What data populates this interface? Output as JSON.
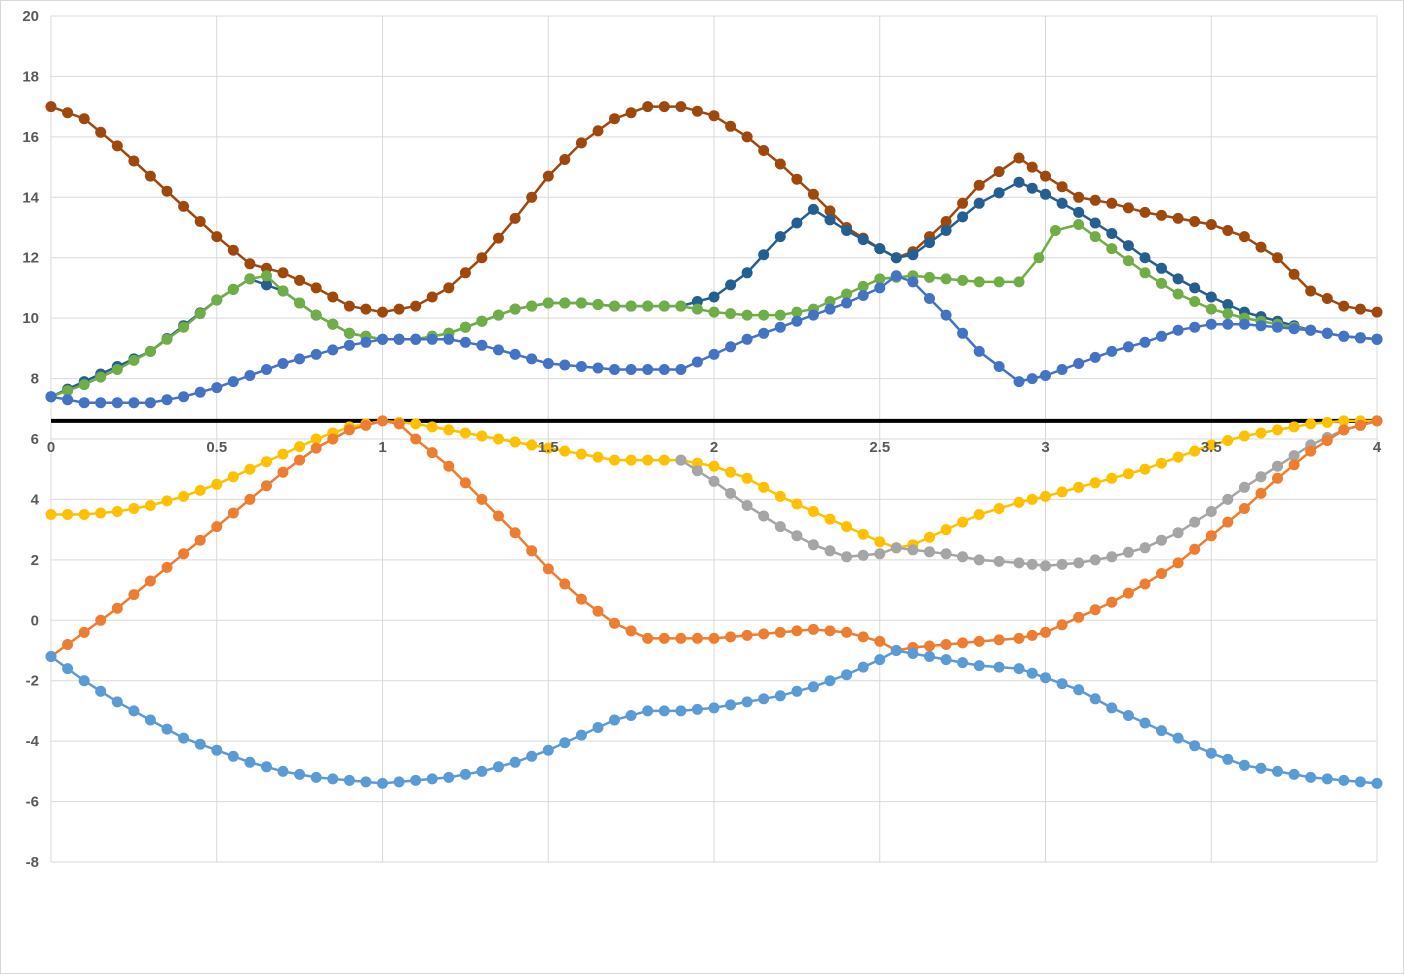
{
  "chart_data": {
    "type": "line",
    "title": "",
    "xlabel": "",
    "ylabel": "",
    "xlim": [
      0,
      4
    ],
    "ylim": [
      -8,
      20
    ],
    "x_ticks": [
      0,
      0.5,
      1,
      1.5,
      2,
      2.5,
      3,
      3.5,
      4
    ],
    "y_ticks": [
      -8,
      -6,
      -4,
      -2,
      0,
      2,
      4,
      6,
      8,
      10,
      12,
      14,
      16,
      18,
      20
    ],
    "grid": true,
    "x_axis_at_y": 6.6,
    "legend": "none",
    "series": [
      {
        "color": "#9E480E",
        "points": [
          [
            0,
            17.0
          ],
          [
            0.1,
            16.6
          ],
          [
            0.2,
            15.7
          ],
          [
            0.3,
            14.7
          ],
          [
            0.4,
            13.7
          ],
          [
            0.5,
            12.7
          ],
          [
            0.6,
            11.8
          ],
          [
            0.7,
            11.5
          ],
          [
            0.8,
            11.0
          ],
          [
            0.9,
            10.4
          ],
          [
            1.0,
            10.2
          ],
          [
            1.1,
            10.4
          ],
          [
            1.2,
            11.0
          ],
          [
            1.3,
            12.0
          ],
          [
            1.4,
            13.3
          ],
          [
            1.5,
            14.7
          ],
          [
            1.6,
            15.8
          ],
          [
            1.7,
            16.6
          ],
          [
            1.8,
            17.0
          ],
          [
            1.9,
            17.0
          ],
          [
            2.0,
            16.7
          ],
          [
            2.1,
            16.0
          ],
          [
            2.2,
            15.1
          ],
          [
            2.3,
            14.1
          ],
          [
            2.4,
            13.0
          ],
          [
            2.5,
            12.3
          ],
          [
            2.55,
            12.0
          ],
          [
            2.6,
            12.2
          ],
          [
            2.7,
            13.2
          ],
          [
            2.8,
            14.4
          ],
          [
            2.92,
            15.3
          ],
          [
            3.0,
            14.7
          ],
          [
            3.1,
            14.0
          ],
          [
            3.2,
            13.8
          ],
          [
            3.3,
            13.5
          ],
          [
            3.4,
            13.3
          ],
          [
            3.5,
            13.1
          ],
          [
            3.6,
            12.7
          ],
          [
            3.7,
            12.0
          ],
          [
            3.8,
            10.9
          ],
          [
            3.9,
            10.4
          ],
          [
            4.0,
            10.2
          ]
        ]
      },
      {
        "color": "#255E91",
        "points": [
          [
            0,
            7.4
          ],
          [
            0.3,
            8.9
          ],
          [
            0.5,
            10.6
          ],
          [
            0.6,
            11.3
          ],
          [
            0.7,
            10.9
          ],
          [
            0.8,
            10.1
          ],
          [
            0.9,
            9.5
          ],
          [
            1.0,
            9.3
          ],
          [
            1.1,
            9.3
          ],
          [
            1.2,
            9.5
          ],
          [
            1.3,
            9.9
          ],
          [
            1.4,
            10.3
          ],
          [
            1.5,
            10.5
          ],
          [
            1.6,
            10.5
          ],
          [
            1.7,
            10.4
          ],
          [
            1.8,
            10.4
          ],
          [
            1.9,
            10.4
          ],
          [
            2.0,
            10.7
          ],
          [
            2.1,
            11.5
          ],
          [
            2.2,
            12.7
          ],
          [
            2.3,
            13.6
          ],
          [
            2.4,
            12.9
          ],
          [
            2.5,
            12.3
          ],
          [
            2.55,
            12.0
          ],
          [
            2.6,
            12.1
          ],
          [
            2.7,
            12.9
          ],
          [
            2.8,
            13.8
          ],
          [
            2.92,
            14.5
          ],
          [
            3.0,
            14.1
          ],
          [
            3.1,
            13.5
          ],
          [
            3.2,
            12.8
          ],
          [
            3.3,
            12.0
          ],
          [
            3.4,
            11.3
          ],
          [
            3.5,
            10.7
          ],
          [
            3.6,
            10.2
          ],
          [
            3.7,
            9.9
          ],
          [
            3.8,
            9.6
          ],
          [
            3.9,
            9.4
          ],
          [
            4.0,
            9.3
          ]
        ]
      },
      {
        "color": "#70AD47",
        "points": [
          [
            0,
            7.4
          ],
          [
            0.1,
            7.8
          ],
          [
            0.2,
            8.3
          ],
          [
            0.3,
            8.9
          ],
          [
            0.4,
            9.7
          ],
          [
            0.5,
            10.6
          ],
          [
            0.6,
            11.3
          ],
          [
            0.65,
            11.4
          ],
          [
            0.7,
            10.9
          ],
          [
            0.8,
            10.1
          ],
          [
            0.9,
            9.5
          ],
          [
            1.0,
            9.3
          ],
          [
            1.1,
            9.3
          ],
          [
            1.2,
            9.5
          ],
          [
            1.3,
            9.9
          ],
          [
            1.4,
            10.3
          ],
          [
            1.5,
            10.5
          ],
          [
            1.6,
            10.5
          ],
          [
            1.7,
            10.4
          ],
          [
            1.8,
            10.4
          ],
          [
            1.9,
            10.4
          ],
          [
            2.0,
            10.2
          ],
          [
            2.1,
            10.1
          ],
          [
            2.2,
            10.1
          ],
          [
            2.3,
            10.3
          ],
          [
            2.4,
            10.8
          ],
          [
            2.5,
            11.3
          ],
          [
            2.6,
            11.4
          ],
          [
            2.7,
            11.3
          ],
          [
            2.8,
            11.2
          ],
          [
            2.92,
            11.2
          ],
          [
            2.98,
            12.0
          ],
          [
            3.03,
            12.9
          ],
          [
            3.1,
            13.1
          ],
          [
            3.2,
            12.3
          ],
          [
            3.3,
            11.5
          ],
          [
            3.4,
            10.8
          ],
          [
            3.5,
            10.3
          ],
          [
            3.6,
            10.0
          ],
          [
            3.7,
            9.8
          ],
          [
            3.8,
            9.6
          ],
          [
            3.9,
            9.4
          ],
          [
            4.0,
            9.3
          ]
        ]
      },
      {
        "color": "#4472C4",
        "points": [
          [
            0,
            7.4
          ],
          [
            0.1,
            7.2
          ],
          [
            0.2,
            7.2
          ],
          [
            0.3,
            7.2
          ],
          [
            0.4,
            7.4
          ],
          [
            0.5,
            7.7
          ],
          [
            0.6,
            8.1
          ],
          [
            0.7,
            8.5
          ],
          [
            0.8,
            8.8
          ],
          [
            0.9,
            9.1
          ],
          [
            1.0,
            9.3
          ],
          [
            1.1,
            9.3
          ],
          [
            1.2,
            9.3
          ],
          [
            1.3,
            9.1
          ],
          [
            1.4,
            8.8
          ],
          [
            1.5,
            8.5
          ],
          [
            1.6,
            8.4
          ],
          [
            1.7,
            8.3
          ],
          [
            1.8,
            8.3
          ],
          [
            1.9,
            8.3
          ],
          [
            2.0,
            8.8
          ],
          [
            2.1,
            9.3
          ],
          [
            2.2,
            9.7
          ],
          [
            2.3,
            10.1
          ],
          [
            2.4,
            10.5
          ],
          [
            2.5,
            11.0
          ],
          [
            2.55,
            11.4
          ],
          [
            2.6,
            11.2
          ],
          [
            2.7,
            10.1
          ],
          [
            2.8,
            8.9
          ],
          [
            2.92,
            7.9
          ],
          [
            3.0,
            8.1
          ],
          [
            3.1,
            8.5
          ],
          [
            3.2,
            8.9
          ],
          [
            3.3,
            9.2
          ],
          [
            3.4,
            9.6
          ],
          [
            3.5,
            9.8
          ],
          [
            3.6,
            9.8
          ],
          [
            3.7,
            9.7
          ],
          [
            3.8,
            9.6
          ],
          [
            3.9,
            9.4
          ],
          [
            4.0,
            9.3
          ]
        ]
      },
      {
        "color": "#FFC000",
        "points": [
          [
            0,
            3.5
          ],
          [
            0.1,
            3.5
          ],
          [
            0.2,
            3.6
          ],
          [
            0.3,
            3.8
          ],
          [
            0.4,
            4.1
          ],
          [
            0.5,
            4.5
          ],
          [
            0.6,
            5.0
          ],
          [
            0.7,
            5.5
          ],
          [
            0.8,
            6.0
          ],
          [
            0.9,
            6.4
          ],
          [
            1.0,
            6.6
          ],
          [
            1.1,
            6.5
          ],
          [
            1.2,
            6.3
          ],
          [
            1.3,
            6.1
          ],
          [
            1.4,
            5.9
          ],
          [
            1.5,
            5.7
          ],
          [
            1.6,
            5.5
          ],
          [
            1.7,
            5.3
          ],
          [
            1.8,
            5.3
          ],
          [
            1.9,
            5.3
          ],
          [
            2.0,
            5.1
          ],
          [
            2.1,
            4.7
          ],
          [
            2.2,
            4.1
          ],
          [
            2.3,
            3.6
          ],
          [
            2.4,
            3.1
          ],
          [
            2.5,
            2.6
          ],
          [
            2.55,
            2.4
          ],
          [
            2.6,
            2.5
          ],
          [
            2.7,
            3.0
          ],
          [
            2.8,
            3.5
          ],
          [
            2.92,
            3.9
          ],
          [
            3.0,
            4.1
          ],
          [
            3.1,
            4.4
          ],
          [
            3.2,
            4.7
          ],
          [
            3.3,
            5.0
          ],
          [
            3.4,
            5.4
          ],
          [
            3.5,
            5.8
          ],
          [
            3.6,
            6.1
          ],
          [
            3.7,
            6.3
          ],
          [
            3.8,
            6.5
          ],
          [
            3.9,
            6.6
          ],
          [
            4.0,
            6.6
          ]
        ]
      },
      {
        "color": "#A5A5A5",
        "points": [
          [
            1.9,
            5.3
          ],
          [
            2.0,
            4.6
          ],
          [
            2.1,
            3.8
          ],
          [
            2.2,
            3.1
          ],
          [
            2.3,
            2.5
          ],
          [
            2.4,
            2.1
          ],
          [
            2.5,
            2.2
          ],
          [
            2.55,
            2.4
          ],
          [
            2.7,
            2.2
          ],
          [
            2.8,
            2.0
          ],
          [
            2.92,
            1.9
          ],
          [
            3.0,
            1.8
          ],
          [
            3.1,
            1.9
          ],
          [
            3.2,
            2.1
          ],
          [
            3.3,
            2.4
          ],
          [
            3.4,
            2.9
          ],
          [
            3.5,
            3.6
          ],
          [
            3.6,
            4.4
          ],
          [
            3.7,
            5.1
          ],
          [
            3.8,
            5.8
          ],
          [
            3.9,
            6.3
          ],
          [
            4.0,
            6.6
          ]
        ]
      },
      {
        "color": "#ED7D31",
        "points": [
          [
            0,
            -1.2
          ],
          [
            0.1,
            -0.4
          ],
          [
            0.2,
            0.4
          ],
          [
            0.3,
            1.3
          ],
          [
            0.4,
            2.2
          ],
          [
            0.5,
            3.1
          ],
          [
            0.6,
            4.0
          ],
          [
            0.7,
            4.9
          ],
          [
            0.8,
            5.7
          ],
          [
            0.9,
            6.3
          ],
          [
            1.0,
            6.6
          ],
          [
            1.05,
            6.5
          ],
          [
            1.1,
            6.0
          ],
          [
            1.2,
            5.1
          ],
          [
            1.3,
            4.0
          ],
          [
            1.4,
            2.9
          ],
          [
            1.5,
            1.7
          ],
          [
            1.6,
            0.7
          ],
          [
            1.7,
            -0.1
          ],
          [
            1.8,
            -0.6
          ],
          [
            1.9,
            -0.6
          ],
          [
            2.0,
            -0.6
          ],
          [
            2.1,
            -0.5
          ],
          [
            2.2,
            -0.4
          ],
          [
            2.3,
            -0.3
          ],
          [
            2.4,
            -0.4
          ],
          [
            2.5,
            -0.7
          ],
          [
            2.55,
            -1.0
          ],
          [
            2.6,
            -0.9
          ],
          [
            2.7,
            -0.8
          ],
          [
            2.8,
            -0.7
          ],
          [
            2.92,
            -0.6
          ],
          [
            3.0,
            -0.4
          ],
          [
            3.1,
            0.1
          ],
          [
            3.2,
            0.6
          ],
          [
            3.3,
            1.2
          ],
          [
            3.4,
            1.9
          ],
          [
            3.5,
            2.8
          ],
          [
            3.6,
            3.7
          ],
          [
            3.7,
            4.7
          ],
          [
            3.8,
            5.6
          ],
          [
            3.9,
            6.3
          ],
          [
            4.0,
            6.6
          ]
        ]
      },
      {
        "color": "#5B9BD5",
        "points": [
          [
            0,
            -1.2
          ],
          [
            0.1,
            -2.0
          ],
          [
            0.2,
            -2.7
          ],
          [
            0.3,
            -3.3
          ],
          [
            0.4,
            -3.9
          ],
          [
            0.5,
            -4.3
          ],
          [
            0.6,
            -4.7
          ],
          [
            0.7,
            -5.0
          ],
          [
            0.8,
            -5.2
          ],
          [
            0.9,
            -5.3
          ],
          [
            1.0,
            -5.4
          ],
          [
            1.1,
            -5.3
          ],
          [
            1.2,
            -5.2
          ],
          [
            1.3,
            -5.0
          ],
          [
            1.4,
            -4.7
          ],
          [
            1.5,
            -4.3
          ],
          [
            1.6,
            -3.8
          ],
          [
            1.7,
            -3.3
          ],
          [
            1.8,
            -3.0
          ],
          [
            1.9,
            -3.0
          ],
          [
            2.0,
            -2.9
          ],
          [
            2.1,
            -2.7
          ],
          [
            2.2,
            -2.5
          ],
          [
            2.3,
            -2.2
          ],
          [
            2.4,
            -1.8
          ],
          [
            2.5,
            -1.3
          ],
          [
            2.55,
            -1.0
          ],
          [
            2.6,
            -1.1
          ],
          [
            2.7,
            -1.3
          ],
          [
            2.8,
            -1.5
          ],
          [
            2.92,
            -1.6
          ],
          [
            3.0,
            -1.9
          ],
          [
            3.1,
            -2.3
          ],
          [
            3.2,
            -2.9
          ],
          [
            3.3,
            -3.4
          ],
          [
            3.4,
            -3.9
          ],
          [
            3.5,
            -4.4
          ],
          [
            3.6,
            -4.8
          ],
          [
            3.7,
            -5.0
          ],
          [
            3.8,
            -5.2
          ],
          [
            3.9,
            -5.3
          ],
          [
            4.0,
            -5.4
          ]
        ]
      }
    ]
  }
}
